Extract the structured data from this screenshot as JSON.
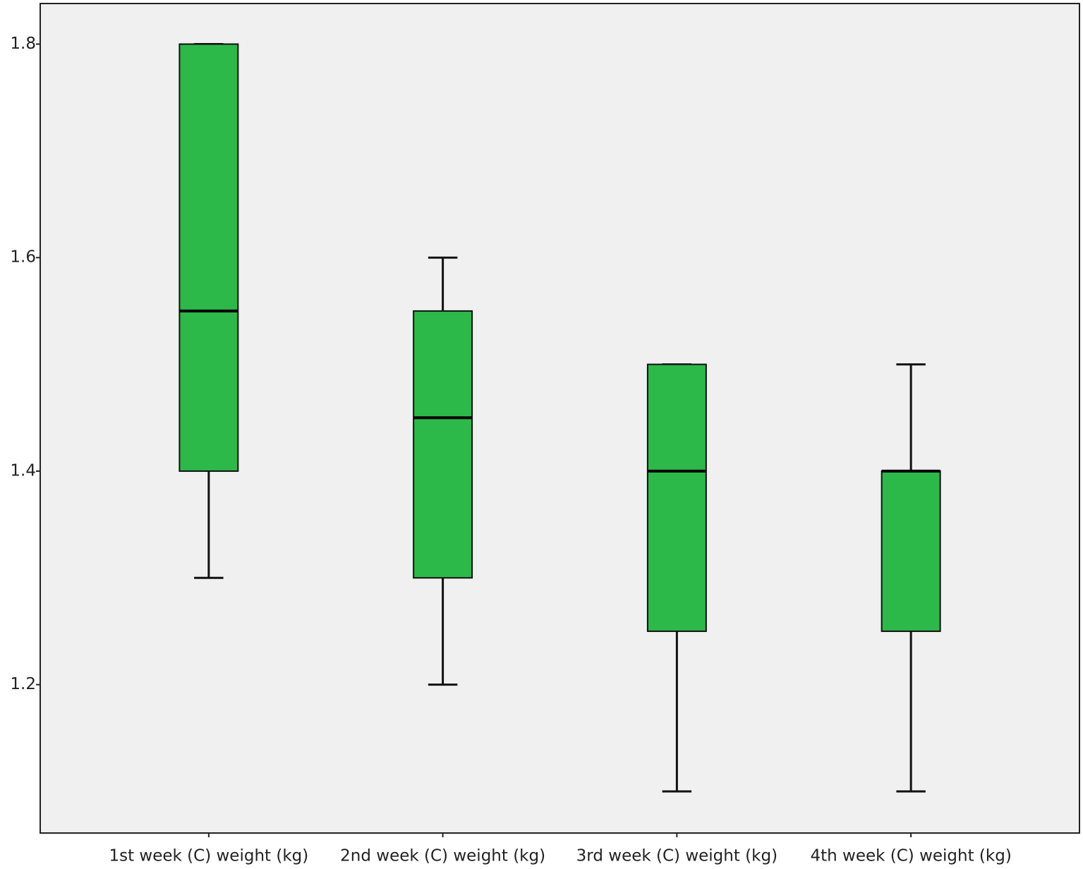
{
  "chart_data": {
    "type": "box",
    "categories": [
      "1st week (C) weight (kg)",
      "2nd week (C) weight (kg)",
      "3rd week (C) weight (kg)",
      "4th week (C) weight (kg)"
    ],
    "boxes": [
      {
        "min": 1.3,
        "q1": 1.4,
        "median": 1.55,
        "q3": 1.8,
        "max": 1.8
      },
      {
        "min": 1.2,
        "q1": 1.3,
        "median": 1.45,
        "q3": 1.55,
        "max": 1.6
      },
      {
        "min": 1.1,
        "q1": 1.25,
        "median": 1.4,
        "q3": 1.5,
        "max": 1.5
      },
      {
        "min": 1.1,
        "q1": 1.25,
        "median": 1.4,
        "q3": 1.4,
        "max": 1.5
      }
    ],
    "color": "#2db84a",
    "ylim": [
      1.061,
      1.838
    ],
    "yticks": [
      {
        "value": 1.2,
        "label": "1.2"
      },
      {
        "value": 1.4,
        "label": "1.4"
      },
      {
        "value": 1.6,
        "label": "1.6"
      },
      {
        "value": 1.8,
        "label": "1.8"
      }
    ]
  }
}
